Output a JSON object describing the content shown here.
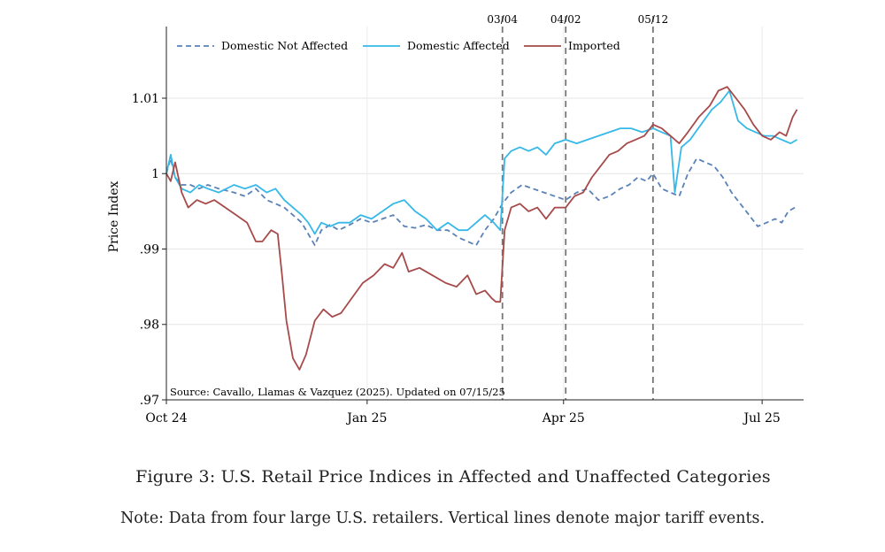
{
  "chart_data": {
    "type": "line",
    "title": "",
    "xlabel": "",
    "ylabel": "Price Index",
    "xlim": [
      "2024-10-01",
      "2025-07-20"
    ],
    "ylim": [
      0.97,
      1.0195
    ],
    "y_ticks": [
      0.97,
      0.98,
      0.99,
      1.0,
      1.01
    ],
    "y_tick_labels": [
      ".97",
      ".98",
      ".99",
      "1",
      "1.01"
    ],
    "x_ticks": [
      "2024-10-01",
      "2025-01-01",
      "2025-04-01",
      "2025-07-01"
    ],
    "x_tick_labels": [
      "Oct 24",
      "Jan 25",
      "Apr 25",
      "Jul 25"
    ],
    "grid": true,
    "legend": "top",
    "events": [
      {
        "date": "2025-03-04",
        "label": "03/04"
      },
      {
        "date": "2025-04-02",
        "label": "04/02"
      },
      {
        "date": "2025-05-12",
        "label": "05/12"
      }
    ],
    "annotation": "Source: Cavallo, Llamas & Vazquez (2025). Updated on 07/15/25",
    "series": [
      {
        "name": "Domestic Not Affected",
        "color": "#5a82b8",
        "style": "dashed",
        "points": [
          [
            "2024-10-01",
            1.0
          ],
          [
            "2024-10-03",
            1.002
          ],
          [
            "2024-10-05",
            0.9995
          ],
          [
            "2024-10-08",
            0.9985
          ],
          [
            "2024-10-12",
            0.9985
          ],
          [
            "2024-10-16",
            0.998
          ],
          [
            "2024-10-20",
            0.9985
          ],
          [
            "2024-10-25",
            0.998
          ],
          [
            "2024-11-01",
            0.9975
          ],
          [
            "2024-11-06",
            0.997
          ],
          [
            "2024-11-11",
            0.998
          ],
          [
            "2024-11-16",
            0.9965
          ],
          [
            "2024-11-20",
            0.996
          ],
          [
            "2024-11-24",
            0.9955
          ],
          [
            "2024-11-28",
            0.9945
          ],
          [
            "2024-12-02",
            0.9935
          ],
          [
            "2024-12-05",
            0.992
          ],
          [
            "2024-12-08",
            0.9905
          ],
          [
            "2024-12-11",
            0.9925
          ],
          [
            "2024-12-15",
            0.9932
          ],
          [
            "2024-12-19",
            0.9925
          ],
          [
            "2024-12-24",
            0.9932
          ],
          [
            "2024-12-29",
            0.994
          ],
          [
            "2025-01-03",
            0.9935
          ],
          [
            "2025-01-08",
            0.994
          ],
          [
            "2025-01-13",
            0.9945
          ],
          [
            "2025-01-18",
            0.993
          ],
          [
            "2025-01-23",
            0.9928
          ],
          [
            "2025-01-28",
            0.9932
          ],
          [
            "2025-02-02",
            0.9925
          ],
          [
            "2025-02-07",
            0.9925
          ],
          [
            "2025-02-12",
            0.9915
          ],
          [
            "2025-02-16",
            0.991
          ],
          [
            "2025-02-20",
            0.9905
          ],
          [
            "2025-02-24",
            0.9925
          ],
          [
            "2025-02-28",
            0.994
          ],
          [
            "2025-03-04",
            0.996
          ],
          [
            "2025-03-08",
            0.9975
          ],
          [
            "2025-03-13",
            0.9985
          ],
          [
            "2025-03-18",
            0.998
          ],
          [
            "2025-03-23",
            0.9975
          ],
          [
            "2025-03-28",
            0.997
          ],
          [
            "2025-04-02",
            0.9965
          ],
          [
            "2025-04-07",
            0.9975
          ],
          [
            "2025-04-12",
            0.998
          ],
          [
            "2025-04-17",
            0.9965
          ],
          [
            "2025-04-22",
            0.997
          ],
          [
            "2025-04-27",
            0.998
          ],
          [
            "2025-05-01",
            0.9985
          ],
          [
            "2025-05-05",
            0.9995
          ],
          [
            "2025-05-09",
            0.999
          ],
          [
            "2025-05-12",
            1.0
          ],
          [
            "2025-05-16",
            0.998
          ],
          [
            "2025-05-20",
            0.9975
          ],
          [
            "2025-05-24",
            0.997
          ],
          [
            "2025-05-28",
            1.0
          ],
          [
            "2025-06-01",
            1.002
          ],
          [
            "2025-06-05",
            1.0015
          ],
          [
            "2025-06-09",
            1.001
          ],
          [
            "2025-06-13",
            0.9995
          ],
          [
            "2025-06-17",
            0.9975
          ],
          [
            "2025-06-21",
            0.996
          ],
          [
            "2025-06-25",
            0.9945
          ],
          [
            "2025-06-29",
            0.993
          ],
          [
            "2025-07-03",
            0.9935
          ],
          [
            "2025-07-07",
            0.994
          ],
          [
            "2025-07-10",
            0.9935
          ],
          [
            "2025-07-13",
            0.995
          ],
          [
            "2025-07-16",
            0.9955
          ]
        ]
      },
      {
        "name": "Domestic Affected",
        "color": "#36b8e8",
        "style": "solid",
        "points": [
          [
            "2024-10-01",
            1.0
          ],
          [
            "2024-10-03",
            1.0025
          ],
          [
            "2024-10-05",
            0.9995
          ],
          [
            "2024-10-08",
            0.998
          ],
          [
            "2024-10-12",
            0.9975
          ],
          [
            "2024-10-16",
            0.9985
          ],
          [
            "2024-10-20",
            0.998
          ],
          [
            "2024-10-25",
            0.9975
          ],
          [
            "2024-11-01",
            0.9985
          ],
          [
            "2024-11-06",
            0.998
          ],
          [
            "2024-11-11",
            0.9985
          ],
          [
            "2024-11-16",
            0.9975
          ],
          [
            "2024-11-20",
            0.998
          ],
          [
            "2024-11-24",
            0.9965
          ],
          [
            "2024-11-28",
            0.9955
          ],
          [
            "2024-12-02",
            0.9945
          ],
          [
            "2024-12-05",
            0.9935
          ],
          [
            "2024-12-08",
            0.992
          ],
          [
            "2024-12-11",
            0.9935
          ],
          [
            "2024-12-15",
            0.993
          ],
          [
            "2024-12-19",
            0.9935
          ],
          [
            "2024-12-24",
            0.9935
          ],
          [
            "2024-12-29",
            0.9945
          ],
          [
            "2025-01-03",
            0.994
          ],
          [
            "2025-01-08",
            0.995
          ],
          [
            "2025-01-13",
            0.996
          ],
          [
            "2025-01-18",
            0.9965
          ],
          [
            "2025-01-23",
            0.995
          ],
          [
            "2025-01-28",
            0.994
          ],
          [
            "2025-02-02",
            0.9925
          ],
          [
            "2025-02-07",
            0.9935
          ],
          [
            "2025-02-12",
            0.9925
          ],
          [
            "2025-02-16",
            0.9925
          ],
          [
            "2025-02-20",
            0.9935
          ],
          [
            "2025-02-24",
            0.9945
          ],
          [
            "2025-02-28",
            0.9935
          ],
          [
            "2025-03-03",
            0.9925
          ],
          [
            "2025-03-05",
            1.002
          ],
          [
            "2025-03-08",
            1.003
          ],
          [
            "2025-03-12",
            1.0035
          ],
          [
            "2025-03-16",
            1.003
          ],
          [
            "2025-03-20",
            1.0035
          ],
          [
            "2025-03-24",
            1.0025
          ],
          [
            "2025-03-28",
            1.004
          ],
          [
            "2025-04-02",
            1.0045
          ],
          [
            "2025-04-07",
            1.004
          ],
          [
            "2025-04-12",
            1.0045
          ],
          [
            "2025-04-17",
            1.005
          ],
          [
            "2025-04-22",
            1.0055
          ],
          [
            "2025-04-27",
            1.006
          ],
          [
            "2025-05-02",
            1.006
          ],
          [
            "2025-05-07",
            1.0055
          ],
          [
            "2025-05-12",
            1.006
          ],
          [
            "2025-05-16",
            1.0055
          ],
          [
            "2025-05-20",
            1.005
          ],
          [
            "2025-05-22",
            0.9975
          ],
          [
            "2025-05-25",
            1.0035
          ],
          [
            "2025-05-29",
            1.0045
          ],
          [
            "2025-06-03",
            1.0065
          ],
          [
            "2025-06-08",
            1.0085
          ],
          [
            "2025-06-12",
            1.0095
          ],
          [
            "2025-06-16",
            1.011
          ],
          [
            "2025-06-20",
            1.007
          ],
          [
            "2025-06-24",
            1.006
          ],
          [
            "2025-06-28",
            1.0055
          ],
          [
            "2025-07-02",
            1.005
          ],
          [
            "2025-07-06",
            1.005
          ],
          [
            "2025-07-10",
            1.0045
          ],
          [
            "2025-07-14",
            1.004
          ],
          [
            "2025-07-17",
            1.0045
          ]
        ]
      },
      {
        "name": "Imported",
        "color": "#a64a4a",
        "style": "solid",
        "points": [
          [
            "2024-10-01",
            1.0
          ],
          [
            "2024-10-03",
            0.999
          ],
          [
            "2024-10-05",
            1.0015
          ],
          [
            "2024-10-08",
            0.9975
          ],
          [
            "2024-10-11",
            0.9955
          ],
          [
            "2024-10-15",
            0.9965
          ],
          [
            "2024-10-19",
            0.996
          ],
          [
            "2024-10-23",
            0.9965
          ],
          [
            "2024-10-28",
            0.9955
          ],
          [
            "2024-11-02",
            0.9945
          ],
          [
            "2024-11-07",
            0.9935
          ],
          [
            "2024-11-11",
            0.991
          ],
          [
            "2024-11-14",
            0.991
          ],
          [
            "2024-11-18",
            0.9925
          ],
          [
            "2024-11-21",
            0.992
          ],
          [
            "2024-11-23",
            0.9865
          ],
          [
            "2024-11-25",
            0.9805
          ],
          [
            "2024-11-28",
            0.9755
          ],
          [
            "2024-12-01",
            0.974
          ],
          [
            "2024-12-04",
            0.976
          ],
          [
            "2024-12-08",
            0.9805
          ],
          [
            "2024-12-12",
            0.982
          ],
          [
            "2024-12-16",
            0.981
          ],
          [
            "2024-12-20",
            0.9815
          ],
          [
            "2024-12-25",
            0.9835
          ],
          [
            "2024-12-30",
            0.9855
          ],
          [
            "2025-01-04",
            0.9865
          ],
          [
            "2025-01-09",
            0.988
          ],
          [
            "2025-01-13",
            0.9875
          ],
          [
            "2025-01-17",
            0.9895
          ],
          [
            "2025-01-20",
            0.987
          ],
          [
            "2025-01-25",
            0.9875
          ],
          [
            "2025-01-31",
            0.9865
          ],
          [
            "2025-02-06",
            0.9855
          ],
          [
            "2025-02-11",
            0.985
          ],
          [
            "2025-02-16",
            0.9865
          ],
          [
            "2025-02-20",
            0.984
          ],
          [
            "2025-02-24",
            0.9845
          ],
          [
            "2025-02-27",
            0.9835
          ],
          [
            "2025-03-01",
            0.983
          ],
          [
            "2025-03-03",
            0.983
          ],
          [
            "2025-03-05",
            0.9925
          ],
          [
            "2025-03-08",
            0.9955
          ],
          [
            "2025-03-12",
            0.996
          ],
          [
            "2025-03-16",
            0.995
          ],
          [
            "2025-03-20",
            0.9955
          ],
          [
            "2025-03-24",
            0.994
          ],
          [
            "2025-03-28",
            0.9955
          ],
          [
            "2025-04-02",
            0.9955
          ],
          [
            "2025-04-06",
            0.997
          ],
          [
            "2025-04-10",
            0.9975
          ],
          [
            "2025-04-14",
            0.9995
          ],
          [
            "2025-04-18",
            1.001
          ],
          [
            "2025-04-22",
            1.0025
          ],
          [
            "2025-04-26",
            1.003
          ],
          [
            "2025-04-30",
            1.004
          ],
          [
            "2025-05-04",
            1.0045
          ],
          [
            "2025-05-08",
            1.005
          ],
          [
            "2025-05-12",
            1.0065
          ],
          [
            "2025-05-16",
            1.006
          ],
          [
            "2025-05-20",
            1.005
          ],
          [
            "2025-05-24",
            1.004
          ],
          [
            "2025-05-28",
            1.0055
          ],
          [
            "2025-06-02",
            1.0075
          ],
          [
            "2025-06-07",
            1.009
          ],
          [
            "2025-06-11",
            1.011
          ],
          [
            "2025-06-15",
            1.0115
          ],
          [
            "2025-06-19",
            1.01
          ],
          [
            "2025-06-23",
            1.0085
          ],
          [
            "2025-06-27",
            1.0065
          ],
          [
            "2025-07-01",
            1.005
          ],
          [
            "2025-07-05",
            1.0045
          ],
          [
            "2025-07-09",
            1.0055
          ],
          [
            "2025-07-12",
            1.005
          ],
          [
            "2025-07-15",
            1.0075
          ],
          [
            "2025-07-17",
            1.0085
          ]
        ]
      }
    ]
  },
  "caption": "Figure 3: U.S. Retail Price Indices in Affected and Unaffected Categories",
  "note": "Note: Data from four large U.S. retailers. Vertical lines denote major tariff events."
}
